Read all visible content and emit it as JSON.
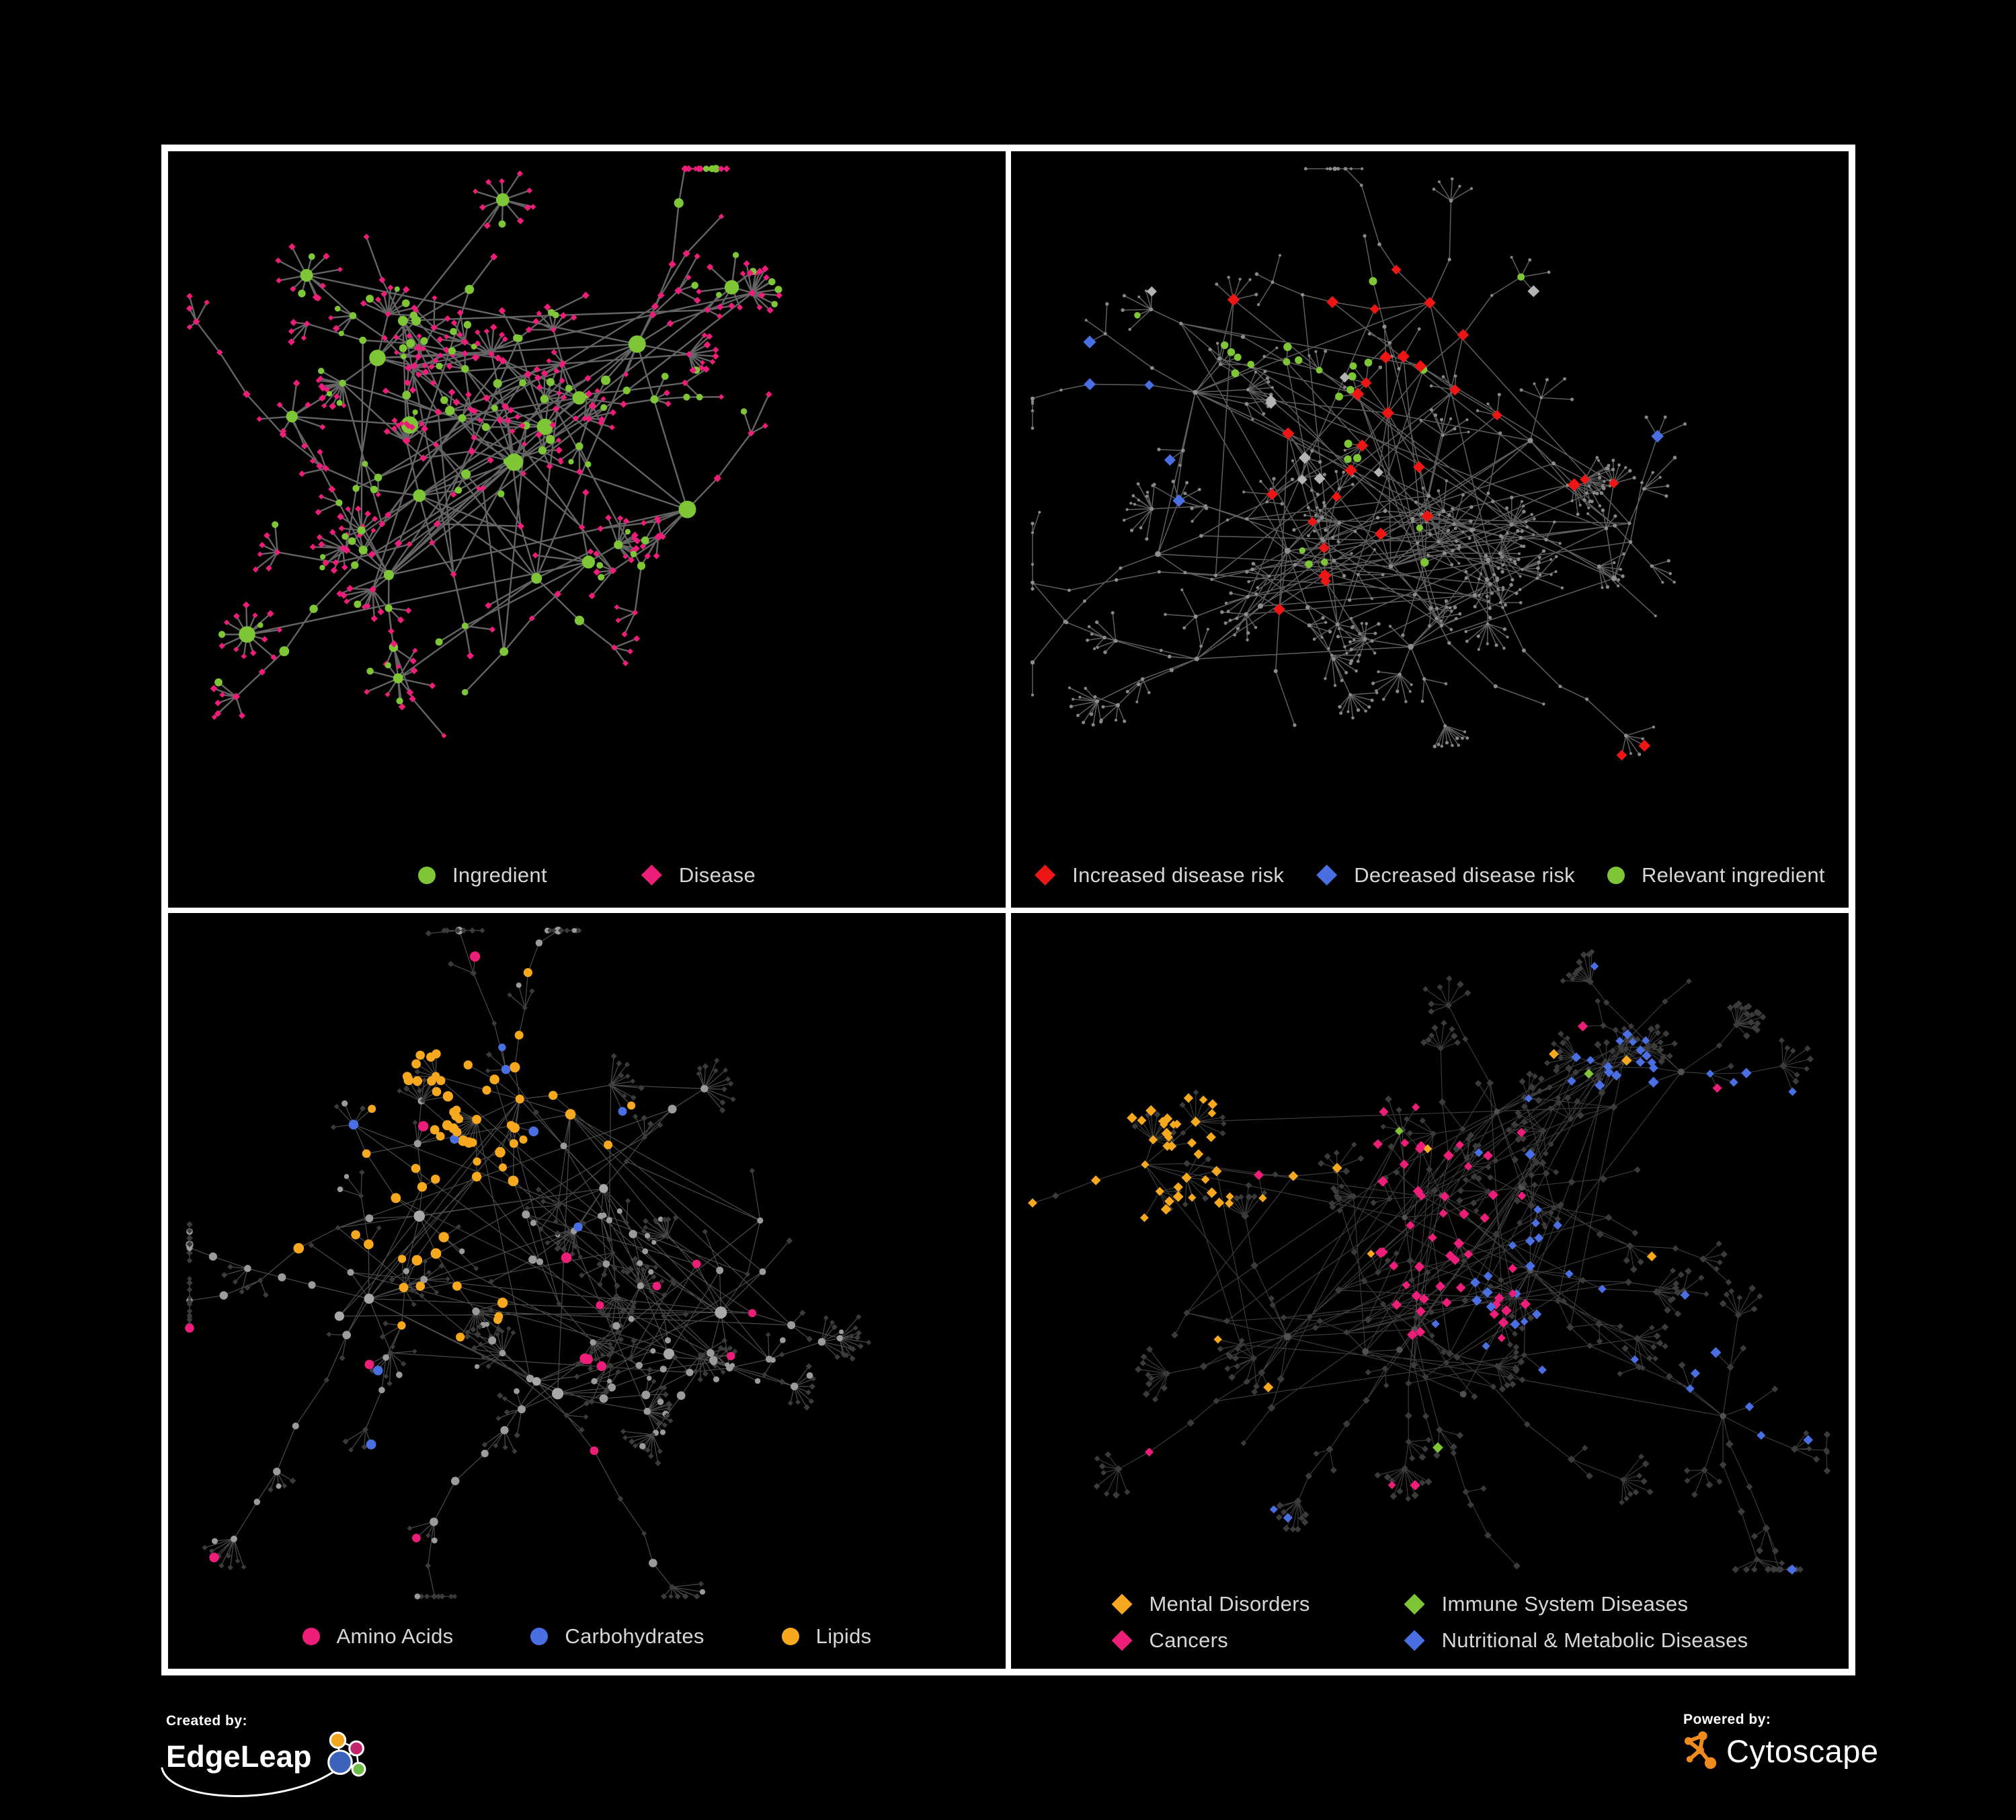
{
  "page": {
    "background": "#000000",
    "frame_border_color": "#ffffff"
  },
  "footer": {
    "created_by_label": "Created by:",
    "created_brand": "EdgeLeap",
    "powered_by_label": "Powered by:",
    "powered_brand": "Cytoscape",
    "cytoscape_orange": "#ef8b1d",
    "edgeleap_logo_colors": {
      "orange": "#f2a71e",
      "magenta": "#c2256e",
      "blue": "#3c63bb",
      "green": "#6dbe45"
    }
  },
  "palette": {
    "green": "#7ec636",
    "magenta": "#ec1e79",
    "red": "#ee1515",
    "blue": "#4a6fe3",
    "orange": "#f6a81f",
    "silver": "#b3b3b3",
    "gray_node": "#8d8d8d",
    "dark_diamond": "#3b3b3b",
    "legend_text": "#d6d6d6"
  },
  "panels": [
    {
      "id": "ingredient-disease",
      "legend_layout": "row",
      "legend_gap": 140,
      "legend": [
        {
          "label": "Ingredient",
          "shape": "circle",
          "color": "#7ec636"
        },
        {
          "label": "Disease",
          "shape": "diamond",
          "color": "#ec1e79"
        }
      ],
      "network": {
        "seed": 7,
        "hubs": 11,
        "hubLinks": 5,
        "branchMin": 4,
        "branchMax": 8,
        "stepMin": 42,
        "stepMax": 92,
        "burstLeaves": 8,
        "satellites": 6,
        "crossLinks": 45,
        "maxNodes": 520,
        "legendReserve": 100,
        "hubSpots": [
          [
            0.45,
            0.4
          ],
          [
            0.3,
            0.5
          ],
          [
            0.56,
            0.28
          ],
          [
            0.44,
            0.62
          ],
          [
            0.62,
            0.52
          ],
          [
            0.25,
            0.3
          ]
        ],
        "edge": {
          "color": "#6f6f6f",
          "width": 2.4,
          "opacity": 0.9
        },
        "base": {
          "hub": [
            {
              "shape": "circle",
              "color": "#7ec636",
              "rmin": 7,
              "rmax": 13,
              "w": 1
            }
          ],
          "mid": [
            {
              "shape": "diamond",
              "color": "#ec1e79",
              "rmin": 4.5,
              "rmax": 6,
              "w": 0.55
            },
            {
              "shape": "circle",
              "color": "#7ec636",
              "rmin": 5,
              "rmax": 7.5,
              "w": 0.45
            }
          ],
          "leaf": [
            {
              "shape": "diamond",
              "color": "#ec1e79",
              "rmin": 4,
              "rmax": 5.5,
              "w": 0.8
            },
            {
              "shape": "circle",
              "color": "#7ec636",
              "rmin": 4,
              "rmax": 6,
              "w": 0.2
            }
          ]
        },
        "rules": []
      }
    },
    {
      "id": "disease-risk",
      "legend_layout": "row",
      "legend_gap": 48,
      "legend": [
        {
          "label": "Increased disease risk",
          "shape": "diamond",
          "color": "#ee1515"
        },
        {
          "label": "Decreased disease risk",
          "shape": "diamond",
          "color": "#4a6fe3"
        },
        {
          "label": "Relevant ingredient",
          "shape": "circle",
          "color": "#7ec636"
        }
      ],
      "network": {
        "seed": 23,
        "hubs": 13,
        "hubLinks": 6,
        "branchMin": 4,
        "branchMax": 9,
        "stepMin": 40,
        "stepMax": 95,
        "burstLeaves": 9,
        "satellites": 7,
        "crossLinks": 70,
        "maxNodes": 640,
        "legendReserve": 100,
        "hubSpots": [
          [
            0.45,
            0.38
          ],
          [
            0.22,
            0.35
          ],
          [
            0.62,
            0.42
          ],
          [
            0.5,
            0.22
          ],
          [
            0.33,
            0.58
          ],
          [
            0.72,
            0.62
          ],
          [
            0.55,
            0.55
          ]
        ],
        "edge": {
          "color": "#6e6e6e",
          "width": 1.5,
          "opacity": 0.85
        },
        "base": {
          "hub": [
            {
              "shape": "circle",
              "color": "#8d8d8d",
              "rmin": 3,
              "rmax": 4.5,
              "w": 1
            }
          ],
          "mid": [
            {
              "shape": "circle",
              "color": "#8d8d8d",
              "rmin": 2.2,
              "rmax": 3.2,
              "w": 1
            }
          ],
          "leaf": [
            {
              "shape": "circle",
              "color": "#878787",
              "rmin": 2,
              "rmax": 2.8,
              "w": 1
            }
          ]
        },
        "rules": [
          {
            "shape": "diamond",
            "color": "#ee1515",
            "size": 8.5,
            "prob": 0.85,
            "max": 30,
            "bias": [
              0.48,
              0.42,
              0.2
            ],
            "kinds": [
              "mid",
              "hub"
            ]
          },
          {
            "shape": "diamond",
            "color": "#ee1515",
            "size": 8,
            "prob": 0.6,
            "max": 5,
            "bias": [
              0.74,
              0.93,
              0.07
            ],
            "kinds": [
              "mid",
              "leaf"
            ]
          },
          {
            "shape": "circle",
            "color": "#7ec636",
            "size": 5.5,
            "prob": 0.8,
            "max": 26,
            "bias": [
              0.4,
              0.4,
              0.22
            ],
            "kinds": [
              "mid",
              "leaf"
            ]
          },
          {
            "shape": "diamond",
            "color": "#4a6fe3",
            "size": 8.5,
            "prob": 0.9,
            "max": 7,
            "bias": [
              0.17,
              0.36,
              0.08
            ],
            "kinds": [
              "mid",
              "leaf"
            ]
          },
          {
            "shape": "diamond",
            "color": "#4a6fe3",
            "size": 9,
            "prob": 0.9,
            "max": 2,
            "bias": [
              0.875,
              0.38,
              0.05
            ],
            "kinds": [
              "mid",
              "leaf"
            ]
          },
          {
            "shape": "diamond",
            "color": "#b3b3b3",
            "size": 8,
            "prob": 0.35,
            "max": 9,
            "bias": [
              0.42,
              0.47,
              0.22
            ],
            "kinds": [
              "mid",
              "leaf"
            ]
          }
        ]
      }
    },
    {
      "id": "nutrient-classes",
      "legend_layout": "row",
      "legend_gap": 115,
      "legend": [
        {
          "label": "Amino Acids",
          "shape": "circle",
          "color": "#ec1e79"
        },
        {
          "label": "Carbohydrates",
          "shape": "circle",
          "color": "#4a6fe3"
        },
        {
          "label": "Lipids",
          "shape": "circle",
          "color": "#f6a81f"
        }
      ],
      "network": {
        "seed": 41,
        "hubs": 11,
        "hubLinks": 6,
        "branchMin": 4,
        "branchMax": 8,
        "stepMin": 40,
        "stepMax": 88,
        "burstLeaves": 10,
        "satellites": 7,
        "crossLinks": 60,
        "maxNodes": 560,
        "legendReserve": 100,
        "hubSpots": [
          [
            0.3,
            0.44
          ],
          [
            0.42,
            0.27
          ],
          [
            0.24,
            0.56
          ],
          [
            0.52,
            0.4
          ],
          [
            0.44,
            0.68
          ],
          [
            0.66,
            0.58
          ]
        ],
        "edge": {
          "color": "#969696",
          "width": 1.2,
          "opacity": 0.5
        },
        "base": {
          "hub": [
            {
              "shape": "circle",
              "color": "#a8a8a8",
              "rmin": 6,
              "rmax": 10,
              "w": 1
            }
          ],
          "mid": [
            {
              "shape": "circle",
              "color": "#9b9b9b",
              "rmin": 4.5,
              "rmax": 6.5,
              "w": 0.7
            },
            {
              "shape": "diamond",
              "color": "#3b3b3b",
              "rmin": 4,
              "rmax": 5,
              "w": 0.3
            }
          ],
          "leaf": [
            {
              "shape": "diamond",
              "color": "#3b3b3b",
              "rmin": 3.8,
              "rmax": 4.8,
              "w": 0.85
            },
            {
              "shape": "circle",
              "color": "#9b9b9b",
              "rmin": 3.5,
              "rmax": 5,
              "w": 0.15
            }
          ]
        },
        "rules": [
          {
            "shape": "circle",
            "color": "#f6a81f",
            "size": 7,
            "prob": 0.95,
            "max": 46,
            "bias": [
              0.4,
              0.27,
              0.13
            ],
            "kinds": [
              "mid",
              "hub",
              "leaf"
            ]
          },
          {
            "shape": "circle",
            "color": "#f6a81f",
            "size": 7,
            "prob": 0.6,
            "max": 18,
            "bias": [
              0.3,
              0.44,
              0.12
            ],
            "kinds": [
              "mid",
              "leaf"
            ]
          },
          {
            "shape": "circle",
            "color": "#f6a81f",
            "size": 7,
            "prob": 0.02,
            "max": 10,
            "kinds": [
              "mid"
            ]
          },
          {
            "shape": "circle",
            "color": "#4a6fe3",
            "size": 6.5,
            "prob": 0.5,
            "max": 9,
            "bias": [
              0.41,
              0.29,
              0.08
            ],
            "kinds": [
              "mid",
              "leaf"
            ]
          },
          {
            "shape": "circle",
            "color": "#4a6fe3",
            "size": 6.5,
            "prob": 0.012,
            "max": 4,
            "kinds": [
              "mid",
              "leaf"
            ]
          },
          {
            "shape": "circle",
            "color": "#ec1e79",
            "size": 7,
            "prob": 0.03,
            "max": 16,
            "kinds": [
              "mid",
              "hub",
              "leaf"
            ]
          }
        ]
      }
    },
    {
      "id": "disease-categories",
      "legend_layout": "grid2",
      "legend_gap": 140,
      "legend": [
        {
          "label": "Mental Disorders",
          "shape": "diamond",
          "color": "#f6a81f"
        },
        {
          "label": "Immune System Diseases",
          "shape": "diamond",
          "color": "#7ec636"
        },
        {
          "label": "Cancers",
          "shape": "diamond",
          "color": "#ec1e79"
        },
        {
          "label": "Nutritional & Metabolic Diseases",
          "shape": "diamond",
          "color": "#4a6fe3"
        }
      ],
      "network": {
        "seed": 61,
        "hubs": 13,
        "hubLinks": 7,
        "branchMin": 4,
        "branchMax": 9,
        "stepMin": 38,
        "stepMax": 85,
        "burstLeaves": 10,
        "satellites": 8,
        "crossLinks": 70,
        "maxNodes": 680,
        "legendReserve": 140,
        "hubSpots": [
          [
            0.16,
            0.38
          ],
          [
            0.47,
            0.46
          ],
          [
            0.62,
            0.54
          ],
          [
            0.8,
            0.24
          ],
          [
            0.85,
            0.76
          ],
          [
            0.33,
            0.64
          ],
          [
            0.58,
            0.3
          ]
        ],
        "edge": {
          "color": "#8a8a8a",
          "width": 1.1,
          "opacity": 0.45
        },
        "base": {
          "hub": [
            {
              "shape": "circle",
              "color": "#515151",
              "rmin": 4,
              "rmax": 5.5,
              "w": 1
            }
          ],
          "mid": [
            {
              "shape": "diamond",
              "color": "#3b3b3b",
              "rmin": 4.5,
              "rmax": 6,
              "w": 1
            }
          ],
          "leaf": [
            {
              "shape": "diamond",
              "color": "#3b3b3b",
              "rmin": 4.2,
              "rmax": 5.5,
              "w": 1
            }
          ]
        },
        "rules": [
          {
            "shape": "diamond",
            "color": "#f6a81f",
            "size": 7,
            "prob": 0.97,
            "max": 75,
            "bias": [
              0.16,
              0.38,
              0.13
            ],
            "kinds": [
              "mid",
              "leaf",
              "hub"
            ]
          },
          {
            "shape": "diamond",
            "color": "#f6a81f",
            "size": 7,
            "prob": 0.015,
            "max": 10,
            "kinds": [
              "mid",
              "leaf"
            ]
          },
          {
            "shape": "diamond",
            "color": "#ec1e79",
            "size": 7,
            "prob": 0.9,
            "max": 48,
            "bias": [
              0.47,
              0.47,
              0.13
            ],
            "kinds": [
              "mid",
              "leaf"
            ]
          },
          {
            "shape": "diamond",
            "color": "#ec1e79",
            "size": 7,
            "prob": 0.012,
            "max": 8,
            "kinds": [
              "mid",
              "leaf"
            ]
          },
          {
            "shape": "diamond",
            "color": "#4a6fe3",
            "size": 7,
            "prob": 0.9,
            "max": 20,
            "bias": [
              0.62,
              0.55,
              0.08
            ],
            "kinds": [
              "mid",
              "leaf"
            ]
          },
          {
            "shape": "diamond",
            "color": "#4a6fe3",
            "size": 7,
            "prob": 0.85,
            "max": 18,
            "bias": [
              0.8,
              0.24,
              0.1
            ],
            "kinds": [
              "mid",
              "leaf"
            ]
          },
          {
            "shape": "diamond",
            "color": "#4a6fe3",
            "size": 7,
            "prob": 0.8,
            "max": 12,
            "bias": [
              0.85,
              0.76,
              0.08
            ],
            "kinds": [
              "mid",
              "leaf"
            ]
          },
          {
            "shape": "diamond",
            "color": "#4a6fe3",
            "size": 7,
            "prob": 0.02,
            "max": 14,
            "kinds": [
              "mid",
              "leaf"
            ]
          },
          {
            "shape": "diamond",
            "color": "#7ec636",
            "size": 7,
            "prob": 0.012,
            "max": 8,
            "kinds": [
              "mid",
              "leaf"
            ]
          }
        ]
      }
    }
  ]
}
